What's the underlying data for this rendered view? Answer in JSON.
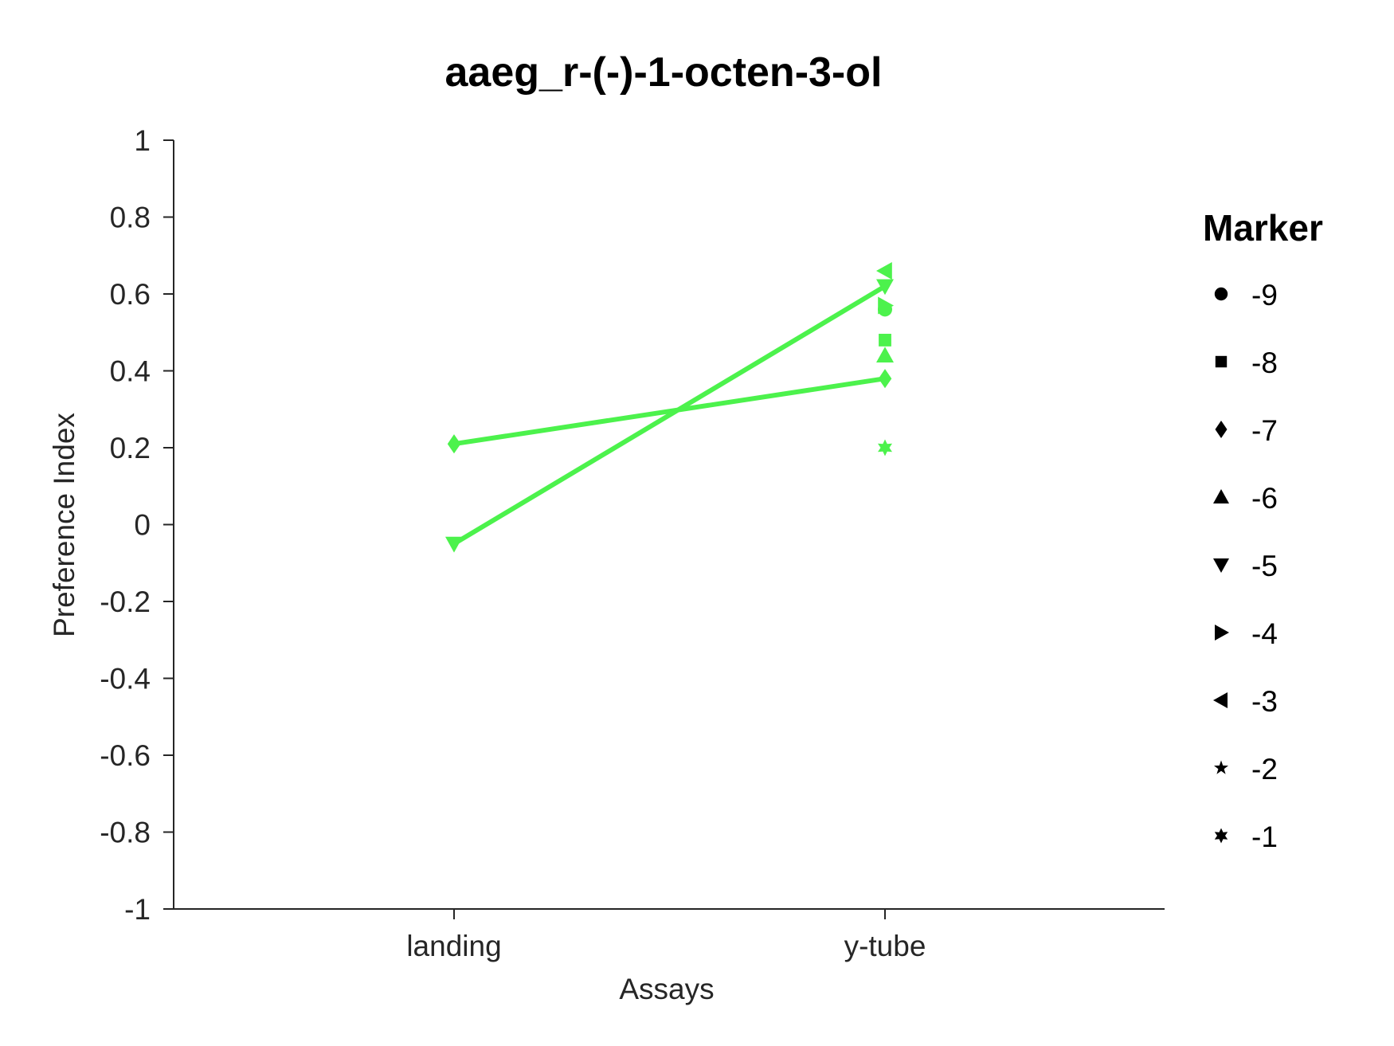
{
  "chart_data": {
    "type": "line",
    "title": "aaeg_r-(-)-1-octen-3-ol",
    "xlabel": "Assays",
    "ylabel": "Preference Index",
    "categories": [
      "landing",
      "y-tube"
    ],
    "ylim": [
      -1,
      1
    ],
    "yticks": [
      1,
      0.8,
      0.6,
      0.4,
      0.2,
      0,
      -0.2,
      -0.4,
      -0.6,
      -0.8,
      -1
    ],
    "ytick_labels": [
      "1",
      "0.8",
      "0.6",
      "0.4",
      "0.2",
      "0",
      "-0.2",
      "-0.4",
      "-0.6",
      "-0.8",
      "-1"
    ],
    "grid": false,
    "color": "#4cf24c",
    "series": [
      {
        "marker": "diamond",
        "values": [
          0.21,
          0.38
        ]
      },
      {
        "marker": "triangle-down",
        "values": [
          -0.05,
          0.62
        ]
      },
      {
        "marker": "circle",
        "values": [
          null,
          0.56
        ]
      },
      {
        "marker": "square",
        "values": [
          null,
          0.48
        ]
      },
      {
        "marker": "triangle-up",
        "values": [
          null,
          0.44
        ]
      },
      {
        "marker": "triangle-right",
        "values": [
          null,
          0.57
        ]
      },
      {
        "marker": "triangle-left",
        "values": [
          null,
          0.66
        ]
      },
      {
        "marker": "hexagram",
        "values": [
          null,
          0.2
        ]
      }
    ],
    "legend": {
      "title": "Marker",
      "placement": "right",
      "entries": [
        {
          "label": "-9",
          "marker": "circle"
        },
        {
          "label": "-8",
          "marker": "square"
        },
        {
          "label": "-7",
          "marker": "diamond"
        },
        {
          "label": "-6",
          "marker": "triangle-up"
        },
        {
          "label": "-5",
          "marker": "triangle-down"
        },
        {
          "label": "-4",
          "marker": "triangle-right"
        },
        {
          "label": "-3",
          "marker": "triangle-left"
        },
        {
          "label": "-2",
          "marker": "pentagram"
        },
        {
          "label": "-1",
          "marker": "hexagram"
        }
      ]
    }
  }
}
